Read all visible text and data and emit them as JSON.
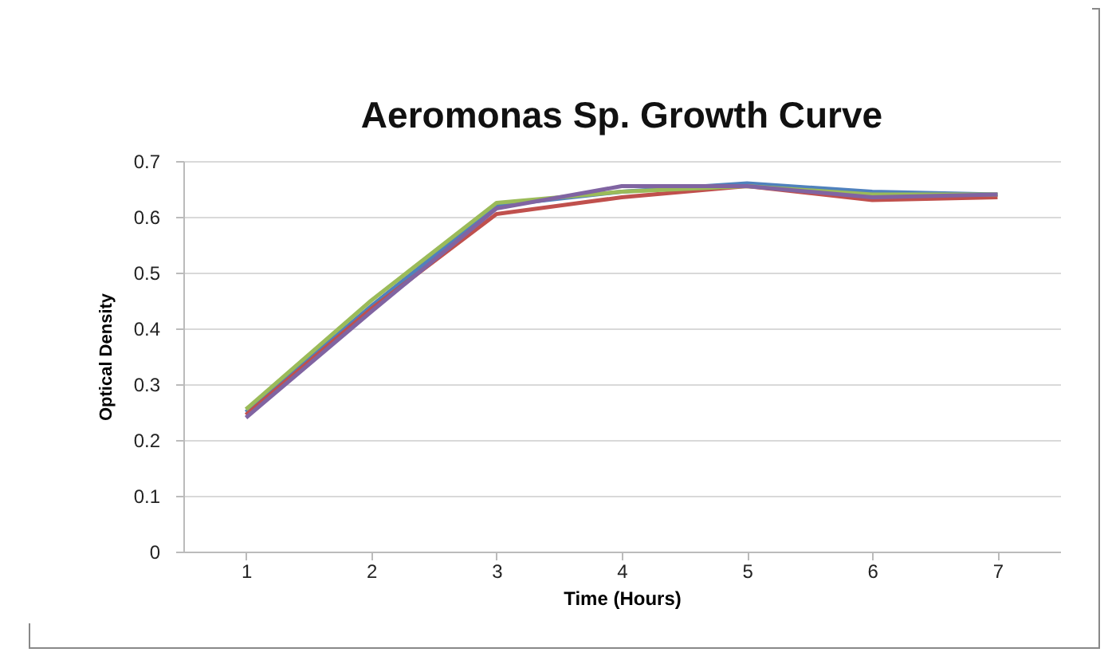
{
  "chart_data": {
    "type": "line",
    "title": "Aeromonas Sp. Growth Curve",
    "xlabel": "Time (Hours)",
    "ylabel": "Optical Density",
    "categories": [
      "1",
      "2",
      "3",
      "4",
      "5",
      "6",
      "7"
    ],
    "series": [
      {
        "color": "#4f81bd",
        "values": [
          0.25,
          0.44,
          0.62,
          0.645,
          0.66,
          0.645,
          0.64
        ]
      },
      {
        "color": "#c0504d",
        "values": [
          0.245,
          0.435,
          0.605,
          0.635,
          0.655,
          0.63,
          0.635
        ]
      },
      {
        "color": "#9bbb59",
        "values": [
          0.255,
          0.45,
          0.625,
          0.645,
          0.655,
          0.64,
          0.64
        ]
      },
      {
        "color": "#8064a2",
        "values": [
          0.24,
          0.43,
          0.615,
          0.655,
          0.655,
          0.635,
          0.64
        ]
      }
    ],
    "ylim": [
      0,
      0.7
    ],
    "yticks": [
      0,
      0.1,
      0.2,
      0.3,
      0.4,
      0.5,
      0.6,
      0.7
    ],
    "grid": "y",
    "marker": "none",
    "line_style": "solid"
  }
}
